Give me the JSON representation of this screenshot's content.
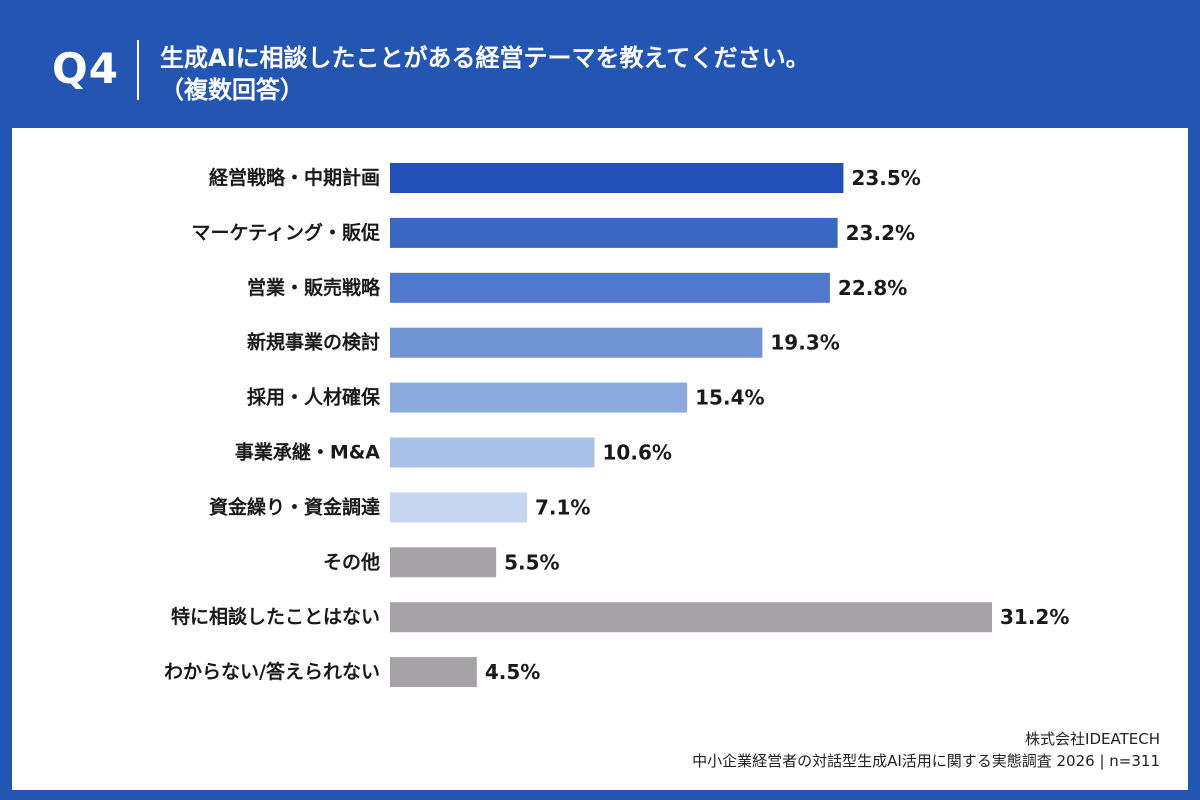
{
  "header": {
    "question_number": "Q4",
    "title_line1": "生成AIに相談したことがある経営テーマを教えてください。",
    "title_line2": "（複数回答）"
  },
  "footer": {
    "company": "株式会社IDEATECH",
    "survey": "中小企業経営者の対話型生成AI活用に関する実態調査 2026 | n=311"
  },
  "chart_data": {
    "type": "bar",
    "orientation": "horizontal",
    "categories": [
      "経営戦略・中期計画",
      "マーケティング・販促",
      "営業・販売戦略",
      "新規事業の検討",
      "採用・人材確保",
      "事業承継・M&A",
      "資金繰り・資金調達",
      "その他",
      "特に相談したことはない",
      "わからない/答えられない"
    ],
    "values": [
      23.5,
      23.2,
      22.8,
      19.3,
      15.4,
      10.6,
      7.1,
      5.5,
      31.2,
      4.5
    ],
    "value_labels": [
      "23.5%",
      "23.2%",
      "22.8%",
      "19.3%",
      "15.4%",
      "10.6%",
      "7.1%",
      "5.5%",
      "31.2%",
      "4.5%"
    ],
    "colors": [
      "#2250b8",
      "#3b66c2",
      "#5079cb",
      "#7192d3",
      "#8caadd",
      "#a8c0e6",
      "#c6d6f1",
      "#a6a3a6",
      "#a6a3a6",
      "#a6a3a6"
    ],
    "xlim": [
      0,
      31.2
    ],
    "grid": false,
    "legend": "none"
  }
}
